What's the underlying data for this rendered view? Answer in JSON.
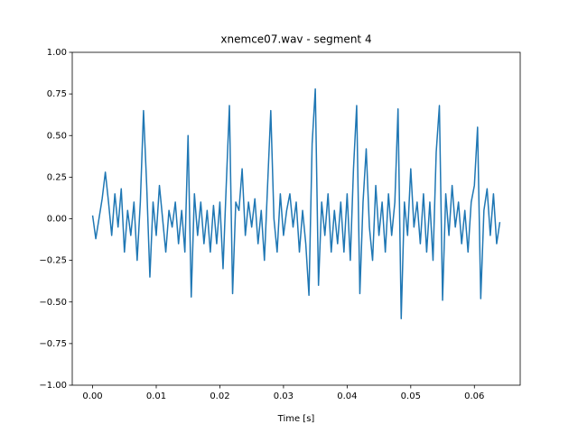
{
  "chart_data": {
    "type": "line",
    "title": "xnemce07.wav - segment 4",
    "xlabel": "Time [s]",
    "x": [
      0.0,
      0.0005,
      0.001,
      0.0015,
      0.002,
      0.0025,
      0.003,
      0.0035,
      0.004,
      0.0045,
      0.005,
      0.0055,
      0.006,
      0.0065,
      0.007,
      0.0075,
      0.008,
      0.0085,
      0.009,
      0.0095,
      0.01,
      0.0105,
      0.011,
      0.0115,
      0.012,
      0.0125,
      0.013,
      0.0135,
      0.014,
      0.0145,
      0.015,
      0.0155,
      0.016,
      0.0165,
      0.017,
      0.0175,
      0.018,
      0.0185,
      0.019,
      0.0195,
      0.02,
      0.0205,
      0.021,
      0.0215,
      0.022,
      0.0225,
      0.023,
      0.0235,
      0.024,
      0.0245,
      0.025,
      0.0255,
      0.026,
      0.0265,
      0.027,
      0.0275,
      0.028,
      0.0285,
      0.029,
      0.0295,
      0.03,
      0.0305,
      0.031,
      0.0315,
      0.032,
      0.0325,
      0.033,
      0.0335,
      0.034,
      0.0345,
      0.035,
      0.0355,
      0.036,
      0.0365,
      0.037,
      0.0375,
      0.038,
      0.0385,
      0.039,
      0.0395,
      0.04,
      0.0405,
      0.041,
      0.0415,
      0.042,
      0.0425,
      0.043,
      0.0435,
      0.044,
      0.0445,
      0.045,
      0.0455,
      0.046,
      0.0465,
      0.047,
      0.0475,
      0.048,
      0.0485,
      0.049,
      0.0495,
      0.05,
      0.0505,
      0.051,
      0.0515,
      0.052,
      0.0525,
      0.053,
      0.0535,
      0.054,
      0.0545,
      0.055,
      0.0555,
      0.056,
      0.0565,
      0.057,
      0.0575,
      0.058,
      0.0585,
      0.059,
      0.0595,
      0.06,
      0.0605,
      0.061,
      0.0615,
      0.062,
      0.0625,
      0.063,
      0.0635,
      0.064
    ],
    "series": [
      {
        "color": "#1f77b4",
        "values": [
          0.02,
          -0.12,
          0.0,
          0.12,
          0.28,
          0.1,
          -0.1,
          0.15,
          -0.05,
          0.18,
          -0.2,
          0.05,
          -0.1,
          0.1,
          -0.25,
          0.1,
          0.65,
          0.2,
          -0.35,
          0.1,
          -0.1,
          0.2,
          0.0,
          -0.2,
          0.05,
          -0.05,
          0.1,
          -0.15,
          0.05,
          -0.2,
          0.5,
          -0.47,
          0.15,
          -0.1,
          0.1,
          -0.15,
          0.05,
          -0.2,
          0.08,
          -0.15,
          0.1,
          -0.3,
          0.2,
          0.68,
          -0.45,
          0.1,
          0.05,
          0.3,
          -0.1,
          0.1,
          -0.05,
          0.12,
          -0.15,
          0.05,
          -0.25,
          0.2,
          0.65,
          0.0,
          -0.2,
          0.15,
          -0.1,
          0.05,
          0.15,
          -0.05,
          0.1,
          -0.2,
          0.05,
          -0.15,
          -0.46,
          0.45,
          0.78,
          -0.4,
          0.1,
          -0.1,
          0.15,
          -0.2,
          0.05,
          -0.15,
          0.1,
          -0.2,
          0.15,
          -0.25,
          0.3,
          0.68,
          -0.45,
          0.1,
          0.42,
          -0.05,
          -0.25,
          0.2,
          -0.1,
          0.1,
          -0.2,
          0.15,
          -0.1,
          0.1,
          0.66,
          -0.6,
          0.1,
          -0.1,
          0.3,
          -0.05,
          0.1,
          -0.15,
          0.15,
          -0.2,
          0.1,
          -0.25,
          0.4,
          0.68,
          -0.49,
          0.15,
          -0.1,
          0.2,
          -0.05,
          0.1,
          -0.15,
          0.05,
          -0.2,
          0.1,
          0.2,
          0.55,
          -0.48,
          0.05,
          0.18,
          -0.1,
          0.15,
          -0.15,
          -0.02
        ]
      }
    ],
    "xlim": [
      -0.0032,
      0.0672
    ],
    "ylim": [
      -1.0,
      1.0
    ],
    "xticks": [
      {
        "value": 0.0,
        "label": "0.00"
      },
      {
        "value": 0.01,
        "label": "0.01"
      },
      {
        "value": 0.02,
        "label": "0.02"
      },
      {
        "value": 0.03,
        "label": "0.03"
      },
      {
        "value": 0.04,
        "label": "0.04"
      },
      {
        "value": 0.05,
        "label": "0.05"
      },
      {
        "value": 0.06,
        "label": "0.06"
      }
    ],
    "yticks": [
      {
        "value": -1.0,
        "label": "−1.00"
      },
      {
        "value": -0.75,
        "label": "−0.75"
      },
      {
        "value": -0.5,
        "label": "−0.50"
      },
      {
        "value": -0.25,
        "label": "−0.25"
      },
      {
        "value": 0.0,
        "label": "0.00"
      },
      {
        "value": 0.25,
        "label": "0.25"
      },
      {
        "value": 0.5,
        "label": "0.50"
      },
      {
        "value": 0.75,
        "label": "0.75"
      },
      {
        "value": 1.0,
        "label": "1.00"
      }
    ]
  }
}
